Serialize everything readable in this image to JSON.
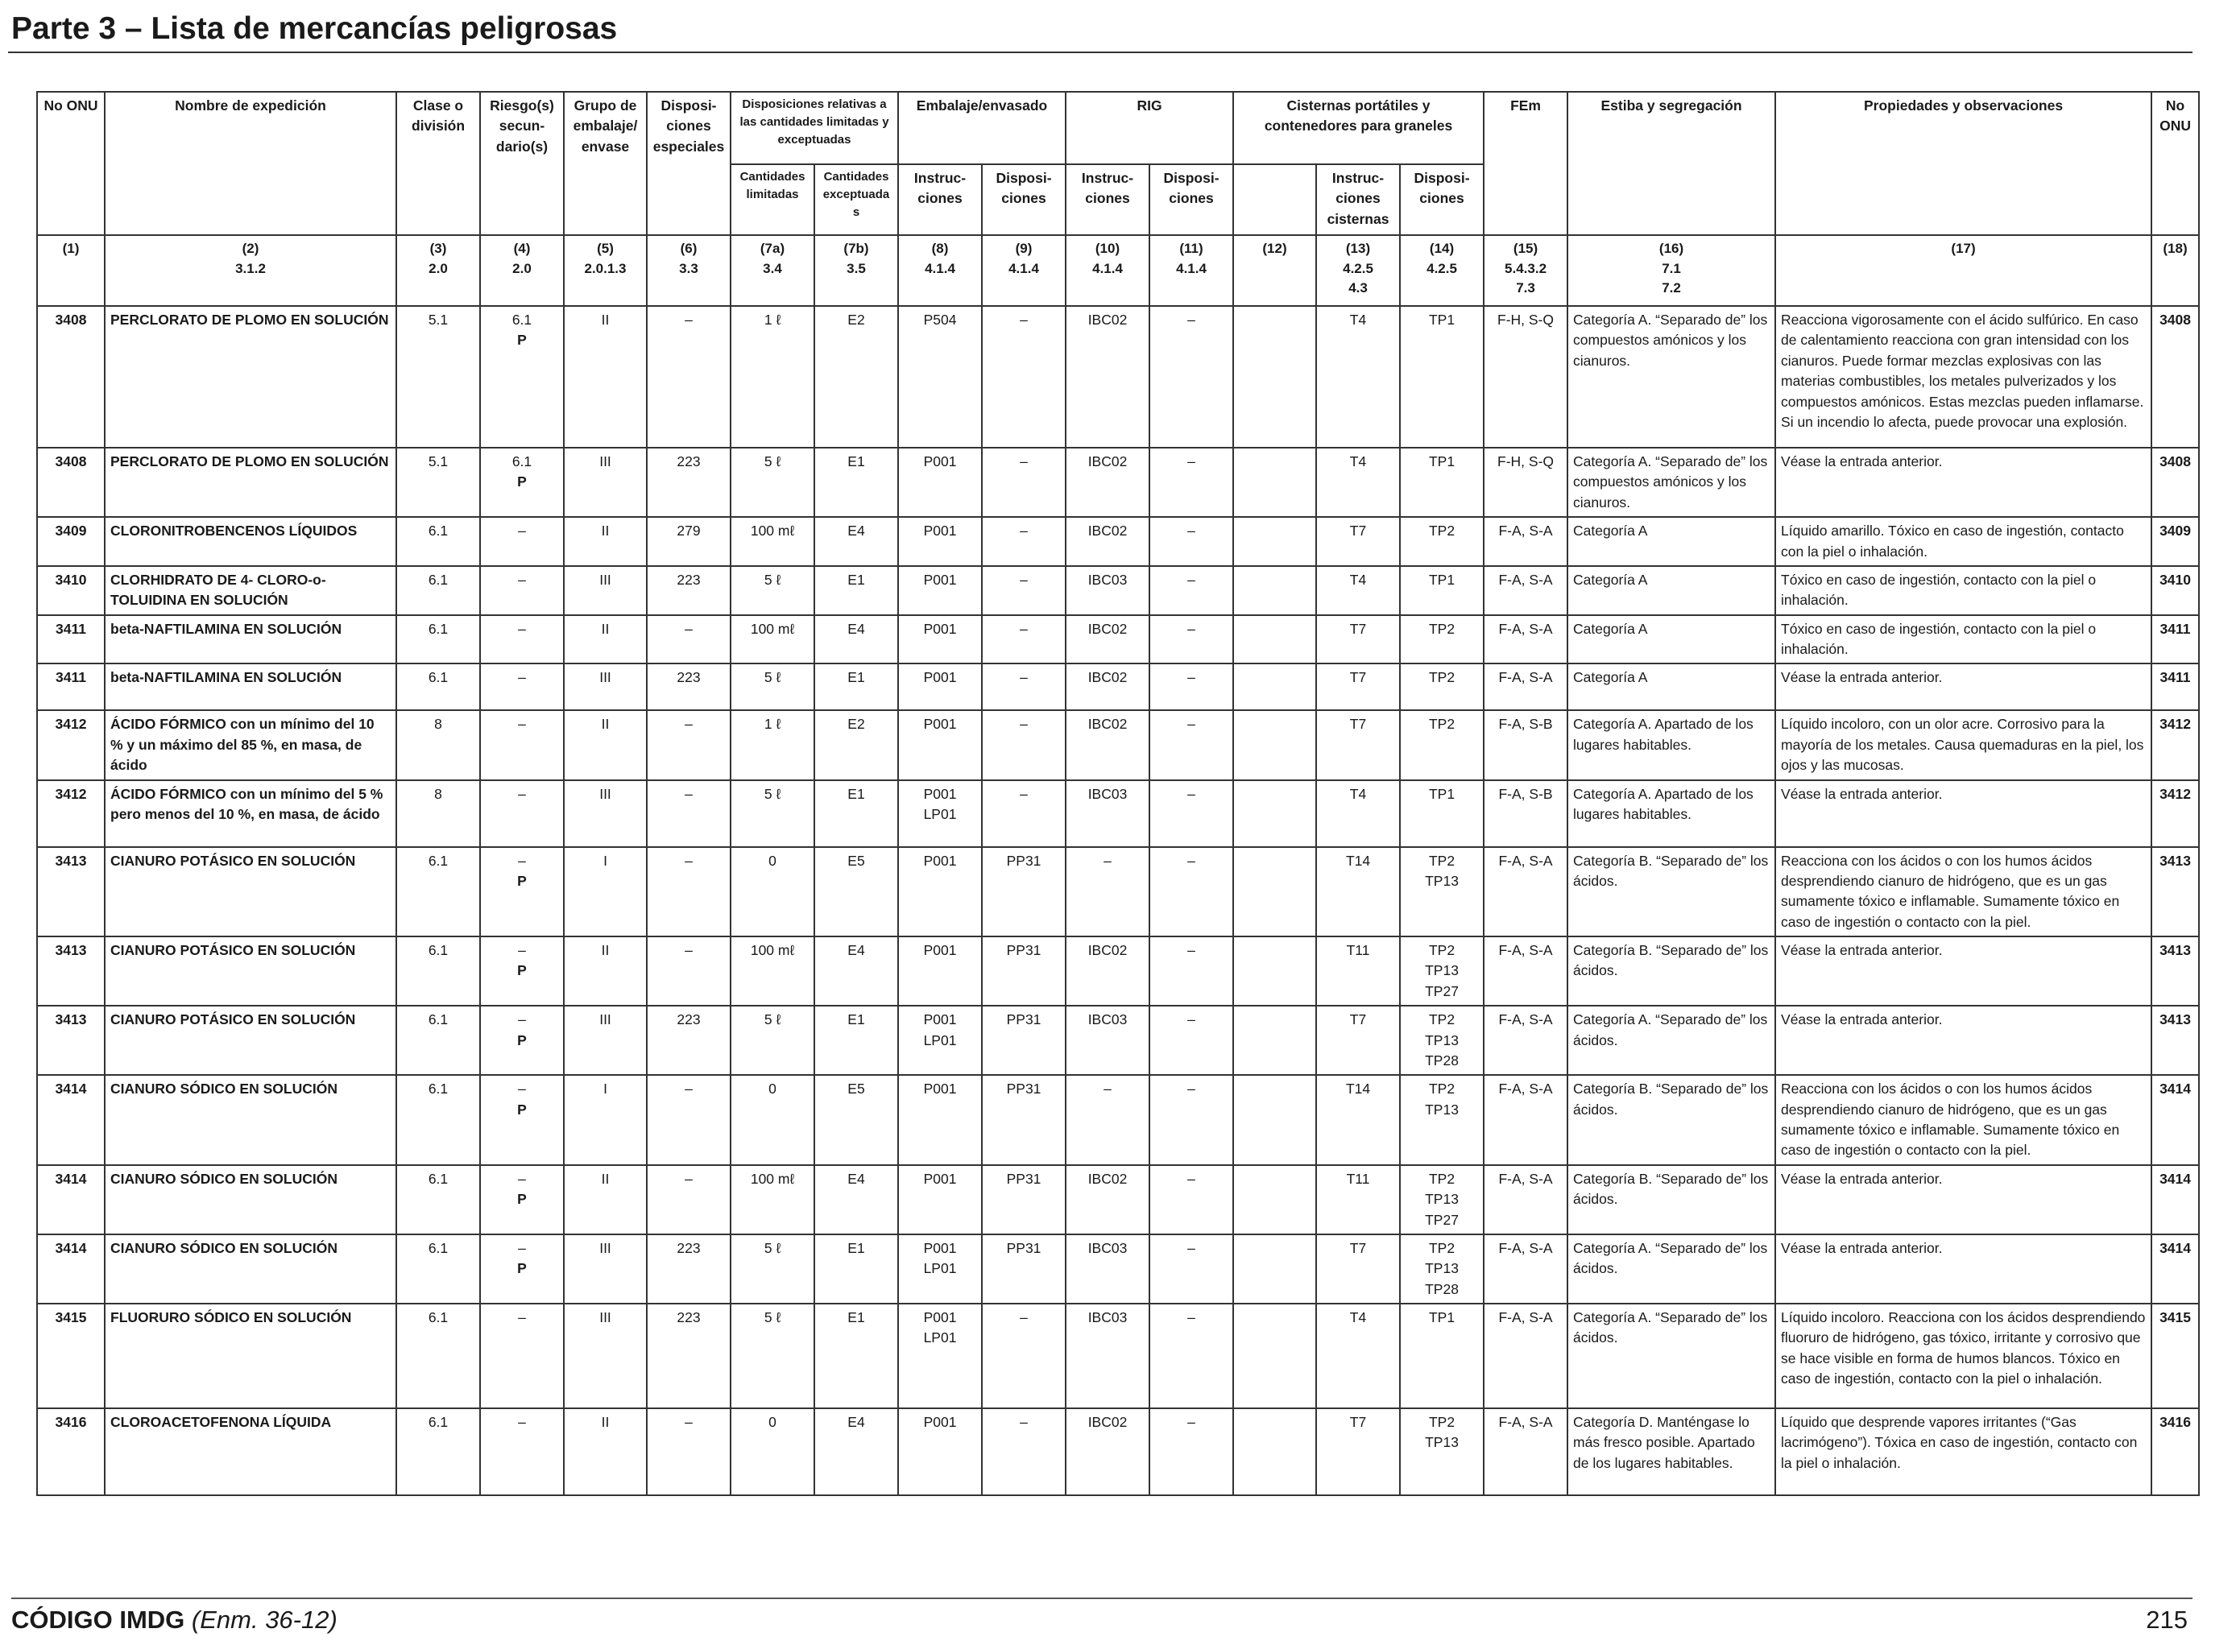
{
  "page_title": "Parte 3 – Lista de mercancías peligrosas",
  "footer": {
    "code": "CÓDIGO IMDG",
    "edition": "(Enm. 36-12)",
    "page_number": "215"
  },
  "headers": {
    "h1": "No ONU",
    "h2": "Nombre de expedición",
    "h3": "Clase o división",
    "h4": "Riesgo(s) secun- dario(s)",
    "h5": "Grupo de embalaje/ envase",
    "h6": "Disposi- ciones especiales",
    "h7": "Disposiciones relativas a las cantidades limitadas y exceptuadas",
    "h7a": "Cantidades limitadas",
    "h7b": "Cantidades exceptuadas",
    "h8_9": "Embalaje/envasado",
    "h8": "Instruc- ciones",
    "h9": "Disposi- ciones",
    "h10_11": "RIG",
    "h10": "Instruc- ciones",
    "h11": "Disposi- ciones",
    "h12_14": "Cisternas portátiles y contenedores para graneles",
    "h13": "Instruc- ciones cisternas",
    "h14": "Disposi- ciones",
    "h15": "FEm",
    "h16": "Estiba y segregación",
    "h17": "Propiedades y observaciones",
    "h18": "No ONU"
  },
  "column_numbers": [
    "(1)",
    "(2)",
    "(3)",
    "(4)",
    "(5)",
    "(6)",
    "(7a)",
    "(7b)",
    "(8)",
    "(9)",
    "(10)",
    "(11)",
    "(12)",
    "(13)",
    "(14)",
    "(15)",
    "(16)",
    "(17)",
    "(18)"
  ],
  "column_refs": [
    "",
    "3.1.2",
    "2.0",
    "2.0",
    "2.0.1.3",
    "3.3",
    "3.4",
    "3.5",
    "4.1.4",
    "4.1.4",
    "4.1.4",
    "4.1.4",
    "",
    "4.2.5 4.3",
    "4.2.5",
    "5.4.3.2 7.3",
    "7.1 7.2",
    "",
    ""
  ],
  "rows": [
    {
      "un": "3408",
      "name": "PERCLORATO DE PLOMO EN SOLUCIÓN",
      "cls": "5.1",
      "sub": "6.1",
      "p": "P",
      "pg": "II",
      "sp": "–",
      "lq": "1 ℓ",
      "eq": "E2",
      "pi": "P504",
      "pp": "–",
      "ibc": "IBC02",
      "ibcp": "–",
      "c12": "",
      "tank": "T4",
      "tp": "TP1",
      "ems": "F-H, S-Q",
      "stow": "Categoría A. “Separado de” los compuestos amónicos y los cianuros.",
      "props": "Reacciona vigorosamente con el ácido sulfúrico. En caso de calentamiento reacciona con gran intensidad con los cianuros. Puede formar mezclas explosivas con las materias combustibles, los metales pulverizados y los compuestos amónicos. Estas mezclas pueden inflamarse. Si un incendio lo afecta, puede provocar una explosión."
    },
    {
      "un": "3408",
      "name": "PERCLORATO DE PLOMO EN SOLUCIÓN",
      "cls": "5.1",
      "sub": "6.1",
      "p": "P",
      "pg": "III",
      "sp": "223",
      "lq": "5 ℓ",
      "eq": "E1",
      "pi": "P001",
      "pp": "–",
      "ibc": "IBC02",
      "ibcp": "–",
      "c12": "",
      "tank": "T4",
      "tp": "TP1",
      "ems": "F-H, S-Q",
      "stow": "Categoría A. “Separado de” los compuestos amónicos y los cianuros.",
      "props": "Véase la entrada anterior."
    },
    {
      "un": "3409",
      "name": "CLORONITROBENCENOS LÍQUIDOS",
      "cls": "6.1",
      "sub": "–",
      "p": "",
      "pg": "II",
      "sp": "279",
      "lq": "100 mℓ",
      "eq": "E4",
      "pi": "P001",
      "pp": "–",
      "ibc": "IBC02",
      "ibcp": "–",
      "c12": "",
      "tank": "T7",
      "tp": "TP2",
      "ems": "F-A, S-A",
      "stow": "Categoría A",
      "props": "Líquido amarillo. Tóxico en caso de ingestión, contacto con la piel o inhalación."
    },
    {
      "un": "3410",
      "name": "CLORHIDRATO DE 4- CLORO-o-TOLUIDINA EN SOLUCIÓN",
      "cls": "6.1",
      "sub": "–",
      "p": "",
      "pg": "III",
      "sp": "223",
      "lq": "5 ℓ",
      "eq": "E1",
      "pi": "P001",
      "pp": "–",
      "ibc": "IBC03",
      "ibcp": "–",
      "c12": "",
      "tank": "T4",
      "tp": "TP1",
      "ems": "F-A, S-A",
      "stow": "Categoría A",
      "props": "Tóxico en caso de ingestión, contacto con la piel o inhalación."
    },
    {
      "un": "3411",
      "name": "beta-NAFTILAMINA EN SOLUCIÓN",
      "cls": "6.1",
      "sub": "–",
      "p": "",
      "pg": "II",
      "sp": "–",
      "lq": "100 mℓ",
      "eq": "E4",
      "pi": "P001",
      "pp": "–",
      "ibc": "IBC02",
      "ibcp": "–",
      "c12": "",
      "tank": "T7",
      "tp": "TP2",
      "ems": "F-A, S-A",
      "stow": "Categoría A",
      "props": "Tóxico en caso de ingestión, contacto con la piel o inhalación."
    },
    {
      "un": "3411",
      "name": "beta-NAFTILAMINA EN SOLUCIÓN",
      "cls": "6.1",
      "sub": "–",
      "p": "",
      "pg": "III",
      "sp": "223",
      "lq": "5 ℓ",
      "eq": "E1",
      "pi": "P001",
      "pp": "–",
      "ibc": "IBC02",
      "ibcp": "–",
      "c12": "",
      "tank": "T7",
      "tp": "TP2",
      "ems": "F-A, S-A",
      "stow": "Categoría A",
      "props": "Véase la entrada anterior."
    },
    {
      "un": "3412",
      "name": "ÁCIDO FÓRMICO con un mínimo del 10 % y un máximo del 85 %, en masa, de ácido",
      "cls": "8",
      "sub": "–",
      "p": "",
      "pg": "II",
      "sp": "–",
      "lq": "1 ℓ",
      "eq": "E2",
      "pi": "P001",
      "pp": "–",
      "ibc": "IBC02",
      "ibcp": "–",
      "c12": "",
      "tank": "T7",
      "tp": "TP2",
      "ems": "F-A, S-B",
      "stow": "Categoría A. Apartado de los lugares habitables.",
      "props": "Líquido incoloro, con un olor acre. Corrosivo para la mayoría de los metales. Causa quemaduras en la piel, los ojos y las mucosas."
    },
    {
      "un": "3412",
      "name": "ÁCIDO FÓRMICO con un mínimo del 5 % pero menos del 10 %, en masa, de ácido",
      "cls": "8",
      "sub": "–",
      "p": "",
      "pg": "III",
      "sp": "–",
      "lq": "5 ℓ",
      "eq": "E1",
      "pi": "P001 LP01",
      "pp": "–",
      "ibc": "IBC03",
      "ibcp": "–",
      "c12": "",
      "tank": "T4",
      "tp": "TP1",
      "ems": "F-A, S-B",
      "stow": "Categoría A. Apartado de los lugares habitables.",
      "props": "Véase la entrada anterior."
    },
    {
      "un": "3413",
      "name": "CIANURO POTÁSICO EN SOLUCIÓN",
      "cls": "6.1",
      "sub": "–",
      "p": "P",
      "pg": "I",
      "sp": "–",
      "lq": "0",
      "eq": "E5",
      "pi": "P001",
      "pp": "PP31",
      "ibc": "–",
      "ibcp": "–",
      "c12": "",
      "tank": "T14",
      "tp": "TP2 TP13",
      "ems": "F-A, S-A",
      "stow": "Categoría B. “Separado de” los ácidos.",
      "props": "Reacciona con los ácidos o con los humos ácidos desprendiendo cianuro de hidrógeno, que es un gas sumamente tóxico e inflamable. Sumamente tóxico en caso de ingestión o contacto con la piel."
    },
    {
      "un": "3413",
      "name": "CIANURO POTÁSICO EN SOLUCIÓN",
      "cls": "6.1",
      "sub": "–",
      "p": "P",
      "pg": "II",
      "sp": "–",
      "lq": "100 mℓ",
      "eq": "E4",
      "pi": "P001",
      "pp": "PP31",
      "ibc": "IBC02",
      "ibcp": "–",
      "c12": "",
      "tank": "T11",
      "tp": "TP2 TP13 TP27",
      "ems": "F-A, S-A",
      "stow": "Categoría B. “Separado de” los ácidos.",
      "props": "Véase la entrada anterior."
    },
    {
      "un": "3413",
      "name": "CIANURO POTÁSICO EN SOLUCIÓN",
      "cls": "6.1",
      "sub": "–",
      "p": "P",
      "pg": "III",
      "sp": "223",
      "lq": "5 ℓ",
      "eq": "E1",
      "pi": "P001 LP01",
      "pp": "PP31",
      "ibc": "IBC03",
      "ibcp": "–",
      "c12": "",
      "tank": "T7",
      "tp": "TP2 TP13 TP28",
      "ems": "F-A, S-A",
      "stow": "Categoría A. “Separado de” los ácidos.",
      "props": "Véase la entrada anterior."
    },
    {
      "un": "3414",
      "name": "CIANURO SÓDICO EN SOLUCIÓN",
      "cls": "6.1",
      "sub": "–",
      "p": "P",
      "pg": "I",
      "sp": "–",
      "lq": "0",
      "eq": "E5",
      "pi": "P001",
      "pp": "PP31",
      "ibc": "–",
      "ibcp": "–",
      "c12": "",
      "tank": "T14",
      "tp": "TP2 TP13",
      "ems": "F-A, S-A",
      "stow": "Categoría B. “Separado de” los ácidos.",
      "props": "Reacciona con los ácidos o con los humos ácidos desprendiendo cianuro de hidrógeno, que es un gas sumamente tóxico e inflamable. Sumamente tóxico en caso de ingestión o contacto con la piel."
    },
    {
      "un": "3414",
      "name": "CIANURO SÓDICO EN SOLUCIÓN",
      "cls": "6.1",
      "sub": "–",
      "p": "P",
      "pg": "II",
      "sp": "–",
      "lq": "100 mℓ",
      "eq": "E4",
      "pi": "P001",
      "pp": "PP31",
      "ibc": "IBC02",
      "ibcp": "–",
      "c12": "",
      "tank": "T11",
      "tp": "TP2 TP13 TP27",
      "ems": "F-A, S-A",
      "stow": "Categoría B. “Separado de” los ácidos.",
      "props": "Véase la entrada anterior."
    },
    {
      "un": "3414",
      "name": "CIANURO SÓDICO EN SOLUCIÓN",
      "cls": "6.1",
      "sub": "–",
      "p": "P",
      "pg": "III",
      "sp": "223",
      "lq": "5 ℓ",
      "eq": "E1",
      "pi": "P001 LP01",
      "pp": "PP31",
      "ibc": "IBC03",
      "ibcp": "–",
      "c12": "",
      "tank": "T7",
      "tp": "TP2 TP13 TP28",
      "ems": "F-A, S-A",
      "stow": "Categoría A. “Separado de” los ácidos.",
      "props": "Véase la entrada anterior."
    },
    {
      "un": "3415",
      "name": "FLUORURO SÓDICO EN SOLUCIÓN",
      "cls": "6.1",
      "sub": "–",
      "p": "",
      "pg": "III",
      "sp": "223",
      "lq": "5 ℓ",
      "eq": "E1",
      "pi": "P001 LP01",
      "pp": "–",
      "ibc": "IBC03",
      "ibcp": "–",
      "c12": "",
      "tank": "T4",
      "tp": "TP1",
      "ems": "F-A, S-A",
      "stow": "Categoría A. “Separado de” los ácidos.",
      "props": "Líquido incoloro. Reacciona con los ácidos desprendiendo fluoruro de hidrógeno, gas tóxico, irritante y corrosivo que se hace visible en forma de humos blancos. Tóxico en caso de ingestión, contacto con la piel o inhalación."
    },
    {
      "un": "3416",
      "name": "CLOROACETOFENONA LÍQUIDA",
      "cls": "6.1",
      "sub": "–",
      "p": "",
      "pg": "II",
      "sp": "–",
      "lq": "0",
      "eq": "E4",
      "pi": "P001",
      "pp": "–",
      "ibc": "IBC02",
      "ibcp": "–",
      "c12": "",
      "tank": "T7",
      "tp": "TP2 TP13",
      "ems": "F-A, S-A",
      "stow": "Categoría D. Manténgase lo más fresco posible. Apartado de los lugares habitables.",
      "props": "Líquido que desprende vapores irritantes (“Gas lacrimógeno”). Tóxica en caso de ingestión, contacto con la piel o inhalación."
    }
  ]
}
